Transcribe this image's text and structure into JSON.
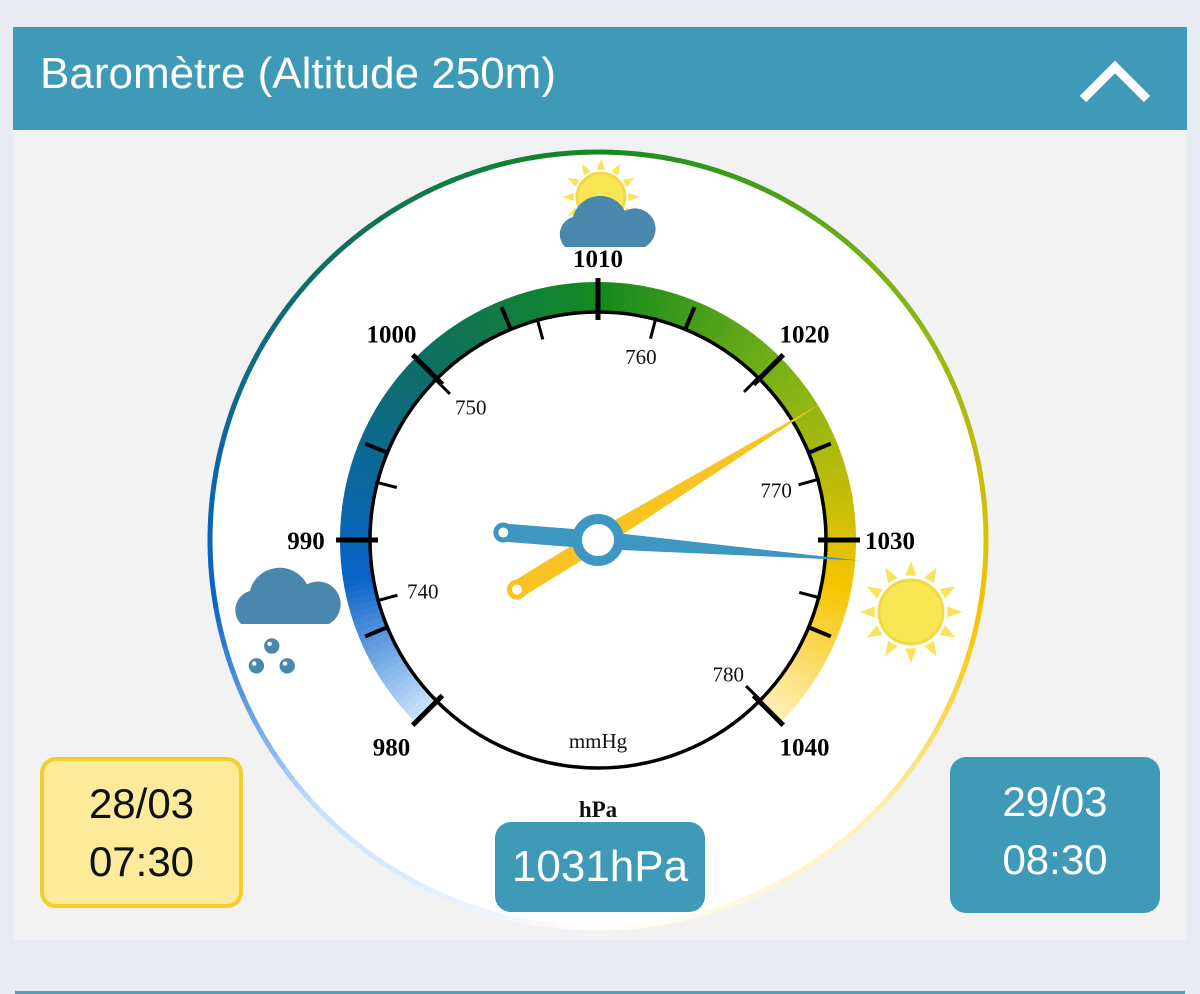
{
  "header": {
    "title": "Baromètre (Altitude 250m)",
    "collapse_icon": "chevron-up-icon"
  },
  "gauge": {
    "hpa_unit": "hPa",
    "mmhg_unit": "mmHg",
    "hpa_labels": [
      "980",
      "990",
      "1000",
      "1010",
      "1020",
      "1030",
      "1040"
    ],
    "mmhg_labels": [
      "740",
      "750",
      "760",
      "770",
      "780"
    ],
    "hpa_range": [
      980,
      1040
    ],
    "current_hpa": 1031,
    "previous_hpa": 1023,
    "icons": {
      "left": "rain-cloud-icon",
      "top": "sun-cloud-icon",
      "right": "sun-icon"
    },
    "colors": {
      "low": "#0a63c9",
      "mid": "#138a1e",
      "high": "#f5c400",
      "current_needle": "#3d97c0",
      "previous_needle": "#f7c421"
    }
  },
  "previous": {
    "date": "28/03",
    "time": "07:30"
  },
  "current": {
    "date": "29/03",
    "time": "08:30",
    "value": "1031hPa"
  }
}
